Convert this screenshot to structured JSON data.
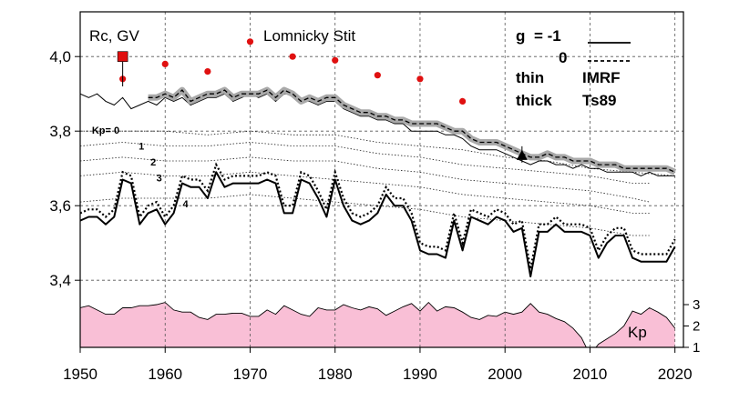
{
  "chart_data": {
    "type": "line",
    "title": "Lomnicky Stit",
    "ylabel": "Rc, GV",
    "xlim": [
      1950,
      2021
    ],
    "ylim": [
      3.22,
      4.12
    ],
    "x_ticks": [
      "1950",
      "1960",
      "1970",
      "1980",
      "1990",
      "2000",
      "2010",
      "2020"
    ],
    "y_ticks": [
      "3,4",
      "3,6",
      "3,8",
      "4,0"
    ],
    "y_tick_values": [
      3.4,
      3.6,
      3.8,
      4.0
    ],
    "grid": true,
    "legend": {
      "g_label": "g",
      "g_minus1": "= -1",
      "g_zero": "0",
      "thin_label": "thin",
      "thick_label": "thick",
      "imrf_label": "IMRF",
      "ts89_label": "Ts89"
    },
    "series": [
      {
        "name": "IMRF thin g=-1",
        "x": [
          1950,
          1951,
          1952,
          1953,
          1954,
          1955,
          1956,
          1957,
          1958,
          1959,
          1960,
          1961,
          1962,
          1963,
          1964,
          1965,
          1966,
          1967,
          1968,
          1969,
          1970,
          1971,
          1972,
          1973,
          1974,
          1975,
          1976,
          1977,
          1978,
          1979,
          1980,
          1981,
          1982,
          1983,
          1984,
          1985,
          1986,
          1987,
          1988,
          1989,
          1990,
          1991,
          1992,
          1993,
          1994,
          1995,
          1996,
          1997,
          1998,
          1999,
          2000,
          2001,
          2002,
          2003,
          2004,
          2005,
          2006,
          2007,
          2008,
          2009,
          2010,
          2011,
          2012,
          2013,
          2014,
          2015,
          2016,
          2017,
          2018,
          2019,
          2020
        ],
        "values": [
          3.9,
          3.89,
          3.9,
          3.88,
          3.87,
          3.89,
          3.86,
          3.87,
          3.88,
          3.87,
          3.89,
          3.88,
          3.89,
          3.87,
          3.88,
          3.89,
          3.89,
          3.9,
          3.88,
          3.89,
          3.9,
          3.89,
          3.9,
          3.88,
          3.9,
          3.9,
          3.88,
          3.88,
          3.87,
          3.88,
          3.88,
          3.86,
          3.85,
          3.84,
          3.84,
          3.83,
          3.83,
          3.82,
          3.82,
          3.8,
          3.8,
          3.8,
          3.8,
          3.79,
          3.79,
          3.78,
          3.76,
          3.75,
          3.75,
          3.75,
          3.74,
          3.73,
          3.72,
          3.71,
          3.72,
          3.72,
          3.71,
          3.71,
          3.7,
          3.71,
          3.7,
          3.7,
          3.69,
          3.69,
          3.69,
          3.69,
          3.68,
          3.69,
          3.68,
          3.68,
          3.68
        ]
      },
      {
        "name": "Ts89 thick g=-1",
        "x": [
          1958,
          1959,
          1960,
          1961,
          1962,
          1963,
          1964,
          1965,
          1966,
          1967,
          1968,
          1969,
          1970,
          1971,
          1972,
          1973,
          1974,
          1975,
          1976,
          1977,
          1978,
          1979,
          1980,
          1981,
          1982,
          1983,
          1984,
          1985,
          1986,
          1987,
          1988,
          1989,
          1990,
          1991,
          1992,
          1993,
          1994,
          1995,
          1996,
          1997,
          1998,
          1999,
          2000,
          2001,
          2002,
          2003,
          2004,
          2005,
          2006,
          2007,
          2008,
          2009,
          2010,
          2011,
          2012,
          2013,
          2014,
          2015,
          2016,
          2017,
          2018,
          2019,
          2020
        ],
        "values": [
          3.89,
          3.89,
          3.9,
          3.89,
          3.91,
          3.88,
          3.89,
          3.9,
          3.9,
          3.91,
          3.89,
          3.9,
          3.9,
          3.9,
          3.91,
          3.89,
          3.91,
          3.9,
          3.88,
          3.89,
          3.88,
          3.89,
          3.89,
          3.87,
          3.86,
          3.85,
          3.85,
          3.84,
          3.84,
          3.83,
          3.83,
          3.82,
          3.82,
          3.82,
          3.82,
          3.81,
          3.8,
          3.8,
          3.78,
          3.77,
          3.77,
          3.77,
          3.76,
          3.75,
          3.74,
          3.73,
          3.73,
          3.74,
          3.73,
          3.73,
          3.72,
          3.72,
          3.72,
          3.71,
          3.71,
          3.71,
          3.7,
          3.7,
          3.7,
          3.7,
          3.7,
          3.7,
          3.69
        ]
      },
      {
        "name": "IMRF thin g=0",
        "x": [
          1950,
          1951,
          1952,
          1953,
          1954,
          1955,
          1956,
          1957,
          1958,
          1959,
          1960,
          1961,
          1962,
          1963,
          1964,
          1965,
          1966,
          1967,
          1968,
          1969,
          1970,
          1971,
          1972,
          1973,
          1974,
          1975,
          1976,
          1977,
          1978,
          1979,
          1980,
          1981,
          1982,
          1983,
          1984,
          1985,
          1986,
          1987,
          1988,
          1989,
          1990,
          1991,
          1992,
          1993,
          1994,
          1995,
          1996,
          1997,
          1998,
          1999,
          2000,
          2001,
          2002,
          2003,
          2004,
          2005,
          2006,
          2007,
          2008,
          2009,
          2010,
          2011,
          2012,
          2013,
          2014,
          2015,
          2016,
          2017,
          2018,
          2019,
          2020
        ],
        "values": [
          3.56,
          3.57,
          3.57,
          3.55,
          3.57,
          3.67,
          3.66,
          3.55,
          3.58,
          3.59,
          3.55,
          3.58,
          3.66,
          3.65,
          3.65,
          3.62,
          3.69,
          3.65,
          3.66,
          3.66,
          3.66,
          3.66,
          3.67,
          3.66,
          3.58,
          3.58,
          3.67,
          3.66,
          3.62,
          3.57,
          3.67,
          3.6,
          3.56,
          3.55,
          3.56,
          3.58,
          3.63,
          3.6,
          3.6,
          3.56,
          3.48,
          3.47,
          3.47,
          3.46,
          3.56,
          3.48,
          3.57,
          3.56,
          3.55,
          3.57,
          3.56,
          3.53,
          3.54,
          3.41,
          3.53,
          3.53,
          3.55,
          3.53,
          3.53,
          3.53,
          3.52,
          3.46,
          3.5,
          3.52,
          3.52,
          3.46,
          3.45,
          3.45,
          3.45,
          3.45,
          3.49
        ]
      },
      {
        "name": "Ts89 thick g=0",
        "x": [
          1950,
          1951,
          1952,
          1953,
          1954,
          1955,
          1956,
          1957,
          1958,
          1959,
          1960,
          1961,
          1962,
          1963,
          1964,
          1965,
          1966,
          1967,
          1968,
          1969,
          1970,
          1971,
          1972,
          1973,
          1974,
          1975,
          1976,
          1977,
          1978,
          1979,
          1980,
          1981,
          1982,
          1983,
          1984,
          1985,
          1986,
          1987,
          1988,
          1989,
          1990,
          1991,
          1992,
          1993,
          1994,
          1995,
          1996,
          1997,
          1998,
          1999,
          2000,
          2001,
          2002,
          2003,
          2004,
          2005,
          2006,
          2007,
          2008,
          2009,
          2010,
          2011,
          2012,
          2013,
          2014,
          2015,
          2016,
          2017,
          2018,
          2019,
          2020
        ],
        "values": [
          3.58,
          3.59,
          3.59,
          3.57,
          3.59,
          3.69,
          3.68,
          3.57,
          3.6,
          3.61,
          3.57,
          3.6,
          3.68,
          3.67,
          3.67,
          3.64,
          3.71,
          3.67,
          3.68,
          3.68,
          3.68,
          3.68,
          3.69,
          3.68,
          3.6,
          3.6,
          3.69,
          3.68,
          3.64,
          3.59,
          3.69,
          3.62,
          3.58,
          3.57,
          3.58,
          3.6,
          3.65,
          3.62,
          3.62,
          3.58,
          3.5,
          3.49,
          3.49,
          3.48,
          3.58,
          3.5,
          3.59,
          3.58,
          3.57,
          3.59,
          3.58,
          3.55,
          3.56,
          3.43,
          3.55,
          3.55,
          3.57,
          3.55,
          3.55,
          3.55,
          3.54,
          3.48,
          3.52,
          3.54,
          3.54,
          3.48,
          3.47,
          3.47,
          3.47,
          3.47,
          3.51
        ]
      },
      {
        "name": "Kp=0",
        "label": "Kp= 0",
        "x": [
          1950,
          1955,
          1960,
          1965,
          1970,
          1975,
          1980,
          1985,
          1990,
          1995,
          2000,
          2005,
          2010,
          2015,
          2020
        ],
        "values": [
          3.8,
          3.8,
          3.8,
          3.79,
          3.8,
          3.79,
          3.79,
          3.77,
          3.76,
          3.75,
          3.73,
          3.72,
          3.7,
          3.69,
          3.68
        ]
      },
      {
        "name": "Kp=1",
        "label": "1",
        "x": [
          1950,
          1955,
          1960,
          1965,
          1970,
          1975,
          1980,
          1985,
          1990,
          1995,
          2000,
          2005,
          2010,
          2015,
          2017
        ],
        "values": [
          3.76,
          3.77,
          3.76,
          3.76,
          3.77,
          3.76,
          3.76,
          3.74,
          3.73,
          3.71,
          3.7,
          3.69,
          3.68,
          3.66,
          3.66
        ]
      },
      {
        "name": "Kp=2",
        "label": "2",
        "x": [
          1950,
          1955,
          1960,
          1965,
          1970,
          1975,
          1980,
          1985,
          1990,
          1995,
          2000,
          2005,
          2010,
          2015,
          2017
        ],
        "values": [
          3.72,
          3.73,
          3.72,
          3.72,
          3.73,
          3.72,
          3.72,
          3.7,
          3.69,
          3.67,
          3.66,
          3.65,
          3.64,
          3.62,
          3.61
        ]
      },
      {
        "name": "Kp=3",
        "label": "3",
        "x": [
          1950,
          1955,
          1960,
          1965,
          1970,
          1975,
          1980,
          1985,
          1990,
          1995,
          2000,
          2005,
          2010,
          2015,
          2017
        ],
        "values": [
          3.68,
          3.69,
          3.68,
          3.68,
          3.69,
          3.68,
          3.67,
          3.66,
          3.65,
          3.63,
          3.62,
          3.61,
          3.6,
          3.58,
          3.58
        ]
      },
      {
        "name": "Kp=4",
        "label": "4",
        "x": [
          1950,
          1955,
          1960,
          1965,
          1970,
          1975,
          1980,
          1985,
          1990,
          1995,
          2000,
          2005,
          2010,
          2015,
          2017
        ],
        "values": [
          3.61,
          3.62,
          3.62,
          3.62,
          3.63,
          3.62,
          3.61,
          3.6,
          3.59,
          3.57,
          3.56,
          3.55,
          3.54,
          3.52,
          3.52
        ]
      }
    ],
    "red_points": {
      "x": [
        1955,
        1960,
        1965,
        1970,
        1975,
        1980,
        1985,
        1990,
        1995
      ],
      "values": [
        3.94,
        3.98,
        3.96,
        4.04,
        4.0,
        3.99,
        3.95,
        3.94,
        3.88
      ]
    },
    "red_square": {
      "x": 1955,
      "value": 4.0
    },
    "triangle": {
      "x": 2002,
      "value": 3.735
    },
    "kp_area": {
      "label": "Kp",
      "axis_ticks": [
        "1",
        "2",
        "3"
      ],
      "axis_tick_values": [
        1,
        2,
        3
      ],
      "x": [
        1950,
        1951,
        1952,
        1953,
        1954,
        1955,
        1956,
        1957,
        1958,
        1959,
        1960,
        1961,
        1962,
        1963,
        1964,
        1965,
        1966,
        1967,
        1968,
        1969,
        1970,
        1971,
        1972,
        1973,
        1974,
        1975,
        1976,
        1977,
        1978,
        1979,
        1980,
        1981,
        1982,
        1983,
        1984,
        1985,
        1986,
        1987,
        1988,
        1989,
        1990,
        1991,
        1992,
        1993,
        1994,
        1995,
        1996,
        1997,
        1998,
        1999,
        2000,
        2001,
        2002,
        2003,
        2004,
        2005,
        2006,
        2007,
        2008,
        2009,
        2010,
        2011,
        2012,
        2013,
        2014,
        2015,
        2016,
        2017,
        2018,
        2019,
        2020
      ],
      "values": [
        2.85,
        2.95,
        2.75,
        2.55,
        2.55,
        2.85,
        2.85,
        2.95,
        2.95,
        3.0,
        3.1,
        2.75,
        2.65,
        2.65,
        2.4,
        2.3,
        2.55,
        2.55,
        2.6,
        2.6,
        2.45,
        2.45,
        2.75,
        2.55,
        2.95,
        2.75,
        2.55,
        2.45,
        2.85,
        2.75,
        2.75,
        3.0,
        2.85,
        2.75,
        2.9,
        2.8,
        2.5,
        2.7,
        2.9,
        3.05,
        2.7,
        3.1,
        2.7,
        2.9,
        2.85,
        2.65,
        2.4,
        2.3,
        2.5,
        2.45,
        2.65,
        2.55,
        2.65,
        3.05,
        2.65,
        2.55,
        2.35,
        2.2,
        1.9,
        1.45,
        0.65,
        1.15,
        1.4,
        1.65,
        2.0,
        2.7,
        2.55,
        2.85,
        2.65,
        2.4,
        1.9
      ]
    }
  }
}
